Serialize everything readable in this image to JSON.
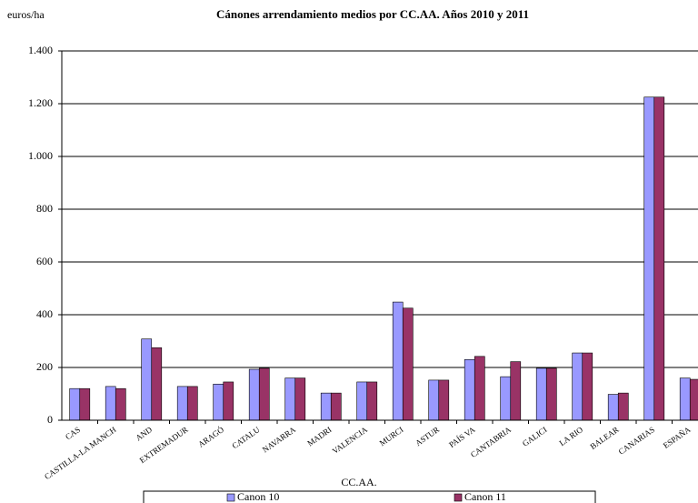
{
  "chart_data": {
    "type": "bar",
    "title": "Cánones arrendamiento medios por CC.AA. Años 2010 y 2011",
    "y_label": "euros/ha",
    "x_label": "CC.AA.",
    "categories": [
      "CAS",
      "CASTILLA-LA MANCH",
      "AND",
      "EXTREMADUR",
      "ARAGÓ",
      "CATALU",
      "NAVARRA",
      "MADRI",
      "VALENCIA",
      "MURCI",
      "ASTUR",
      "PAÍS VA",
      "CANTABRIA",
      "GALICI",
      "LA RIO",
      "BALEAR",
      "CANARIAS",
      "ESPAÑA"
    ],
    "series": [
      {
        "name": "Canon 10",
        "color": "#9999ff",
        "values": [
          120,
          128,
          308,
          128,
          137,
          193,
          160,
          103,
          145,
          448,
          152,
          230,
          165,
          197,
          255,
          98,
          1225,
          160
        ]
      },
      {
        "name": "Canon 11",
        "color": "#993366",
        "values": [
          120,
          120,
          275,
          128,
          145,
          197,
          160,
          103,
          145,
          425,
          152,
          242,
          222,
          197,
          255,
          103,
          1225,
          155
        ]
      }
    ],
    "ylim": [
      0,
      1400
    ],
    "yticks": [
      0,
      200,
      400,
      600,
      800,
      {
        "value": 1000,
        "label": "1.000"
      },
      {
        "value": 1200,
        "label": "1.200"
      },
      {
        "value": 1400,
        "label": "1.400"
      }
    ],
    "grid": true,
    "legend": "bottom"
  }
}
